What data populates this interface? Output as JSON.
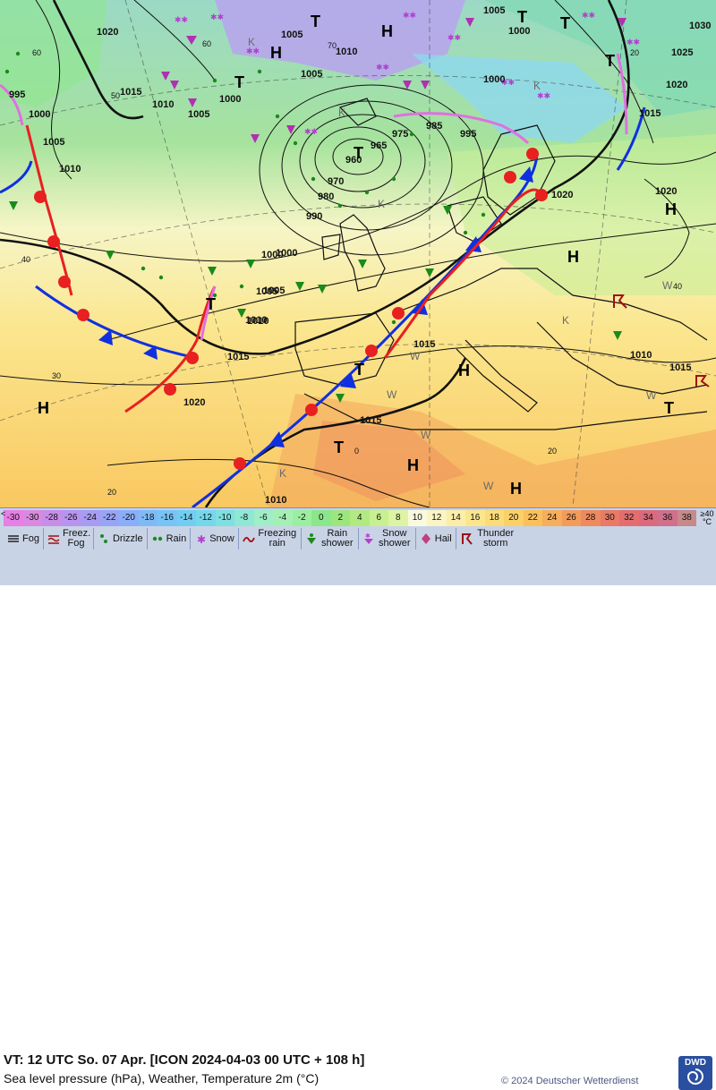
{
  "map": {
    "pressure_labels": [
      "1020",
      "1005",
      "1005",
      "1000",
      "1030",
      "1025",
      "1020",
      "1015",
      "1010",
      "1005",
      "1000",
      "995",
      "1000",
      "1005",
      "1010",
      "1015",
      "1010",
      "1005",
      "1000",
      "1005",
      "1010",
      "1000",
      "995",
      "985",
      "975",
      "965",
      "960",
      "970",
      "980",
      "990",
      "1000",
      "1005",
      "1010",
      "1015",
      "1015",
      "1020",
      "1020",
      "1020",
      "1015",
      "1010",
      "1015",
      "1010"
    ],
    "temperature_labels": [
      "60",
      "50",
      "40",
      "30",
      "20",
      "60",
      "70",
      "40",
      "20",
      "0",
      "20"
    ],
    "highs_lows": {
      "high_label": "H",
      "low_label": "T",
      "cold_label": "K",
      "warm_label": "W"
    }
  },
  "legend": {
    "temperature_scale": {
      "minus_label": "<",
      "unit_label": "≥40 °C",
      "cells": [
        {
          "label": "-30",
          "color": "#e67fe6"
        },
        {
          "label": "-30",
          "color": "#d98ae0"
        },
        {
          "label": "-28",
          "color": "#c88de8"
        },
        {
          "label": "-26",
          "color": "#b894ee"
        },
        {
          "label": "-24",
          "color": "#a79cf2"
        },
        {
          "label": "-22",
          "color": "#98a4f5"
        },
        {
          "label": "-20",
          "color": "#8aaef7"
        },
        {
          "label": "-18",
          "color": "#7fbaf7"
        },
        {
          "label": "-16",
          "color": "#77c4f5"
        },
        {
          "label": "-14",
          "color": "#72cef0"
        },
        {
          "label": "-12",
          "color": "#75d8ea"
        },
        {
          "label": "-10",
          "color": "#7ee0e0"
        },
        {
          "label": "-8",
          "color": "#8ee8d4"
        },
        {
          "label": "-6",
          "color": "#9feec6"
        },
        {
          "label": "-4",
          "color": "#a4f0b4"
        },
        {
          "label": "-2",
          "color": "#9ceea0"
        },
        {
          "label": "0",
          "color": "#8ce68a"
        },
        {
          "label": "2",
          "color": "#9ce67e"
        },
        {
          "label": "4",
          "color": "#b2ea82"
        },
        {
          "label": "6",
          "color": "#c8f090"
        },
        {
          "label": "8",
          "color": "#dcf4a4"
        },
        {
          "label": "10",
          "color": "#fafae0"
        },
        {
          "label": "12",
          "color": "#fbf4c4"
        },
        {
          "label": "14",
          "color": "#fbeea8"
        },
        {
          "label": "16",
          "color": "#fbe68e"
        },
        {
          "label": "18",
          "color": "#fbdc78"
        },
        {
          "label": "20",
          "color": "#fbd066"
        },
        {
          "label": "22",
          "color": "#f9c05c"
        },
        {
          "label": "24",
          "color": "#f6ae5a"
        },
        {
          "label": "26",
          "color": "#f29c5a"
        },
        {
          "label": "28",
          "color": "#ee8a5e"
        },
        {
          "label": "30",
          "color": "#e97a66"
        },
        {
          "label": "32",
          "color": "#e46d70"
        },
        {
          "label": "34",
          "color": "#db6a7c"
        },
        {
          "label": "36",
          "color": "#d0708a"
        },
        {
          "label": "38",
          "color": "#c78a8a"
        }
      ]
    },
    "symbols": [
      {
        "label": "Fog",
        "icon": "fog-icon"
      },
      {
        "label": "Freez. Fog",
        "icon": "freezing-fog-icon"
      },
      {
        "label": "Drizzle",
        "icon": "drizzle-icon"
      },
      {
        "label": "Rain",
        "icon": "rain-icon"
      },
      {
        "label": "Snow",
        "icon": "snow-icon"
      },
      {
        "label": "Freezing rain",
        "icon": "freezing-rain-icon"
      },
      {
        "label": "Rain shower",
        "icon": "rain-shower-icon"
      },
      {
        "label": "Snow shower",
        "icon": "snow-shower-icon"
      },
      {
        "label": "Hail",
        "icon": "hail-icon"
      },
      {
        "label": "Thunder storm",
        "icon": "thunderstorm-icon"
      }
    ],
    "vt_line": "VT: 12 UTC So.  07 Apr. [ICON 2024-04-03  00 UTC + 108 h]",
    "description": "Sea level pressure (hPa), Weather, Temperature 2m (°C)",
    "copyright": "© 2024 Deutscher Wetterdienst",
    "logo_text": "DWD",
    "colors": {
      "cold_front": "#1030e0",
      "warm_front": "#e82020",
      "occlusion": "#e070e0",
      "isobar": "#111111",
      "legend_bg": "#c9d3e6"
    }
  }
}
